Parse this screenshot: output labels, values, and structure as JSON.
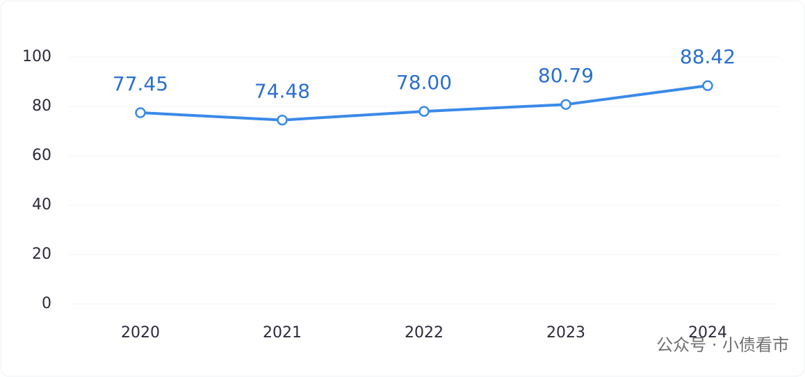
{
  "chart_data": {
    "type": "line",
    "categories": [
      "2020",
      "2021",
      "2022",
      "2023",
      "2024"
    ],
    "values": [
      77.45,
      74.48,
      78.0,
      80.79,
      88.42
    ],
    "value_labels": [
      "77.45",
      "74.48",
      "78.00",
      "80.79",
      "88.42"
    ],
    "color": "#3a8ae8",
    "ylim": [
      0,
      100
    ],
    "yticks": [
      0,
      20,
      40,
      60,
      80,
      100
    ],
    "grid": true,
    "annotation": "公众号 · 小债看市"
  }
}
